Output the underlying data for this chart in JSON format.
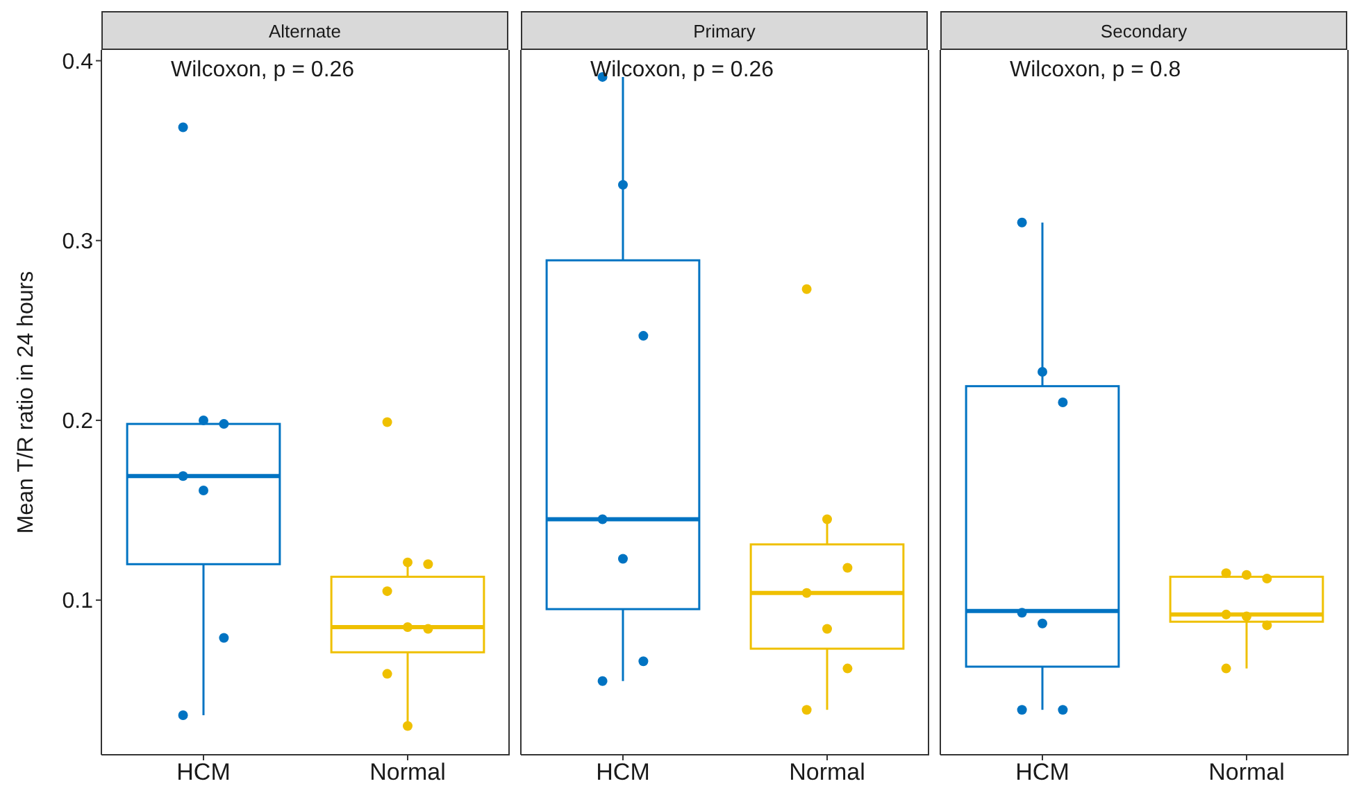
{
  "chart_data": [
    {
      "type": "box",
      "title": "Alternate",
      "ylabel": "Mean T/R ratio in 24 hours",
      "annotations": [
        "Wilcoxon, p = 0.26"
      ],
      "categories": [
        "HCM",
        "Normal"
      ],
      "colors": [
        "#0073c2",
        "#efc000"
      ],
      "ylim": [
        0.014,
        0.406
      ],
      "yticks": [
        0.1,
        0.2,
        0.3,
        0.4
      ],
      "grid": false,
      "legend": false,
      "boxes": [
        {
          "low": 0.036,
          "q1": 0.12,
          "median": 0.169,
          "q3": 0.198,
          "high": 0.2
        },
        {
          "low": 0.03,
          "q1": 0.071,
          "median": 0.085,
          "q3": 0.113,
          "high": 0.121
        }
      ],
      "series": [
        {
          "type": "scatter",
          "color": "#0073c2",
          "x": [
            "HCM",
            "HCM",
            "HCM",
            "HCM",
            "HCM",
            "HCM",
            "HCM"
          ],
          "values": [
            0.363,
            0.2,
            0.198,
            0.169,
            0.161,
            0.079,
            0.036
          ]
        },
        {
          "type": "scatter",
          "color": "#efc000",
          "x": [
            "Normal",
            "Normal",
            "Normal",
            "Normal",
            "Normal",
            "Normal",
            "Normal",
            "Normal"
          ],
          "values": [
            0.199,
            0.121,
            0.12,
            0.105,
            0.085,
            0.084,
            0.059,
            0.03
          ]
        }
      ]
    },
    {
      "type": "box",
      "title": "Primary",
      "annotations": [
        "Wilcoxon, p = 0.26"
      ],
      "categories": [
        "HCM",
        "Normal"
      ],
      "colors": [
        "#0073c2",
        "#efc000"
      ],
      "ylim": [
        0.014,
        0.406
      ],
      "yticks": [
        0.1,
        0.2,
        0.3,
        0.4
      ],
      "tick_labels": "x",
      "grid": false,
      "legend": false,
      "boxes": [
        {
          "low": 0.055,
          "q1": 0.095,
          "median": 0.145,
          "q3": 0.289,
          "high": 0.391
        },
        {
          "low": 0.039,
          "q1": 0.073,
          "median": 0.104,
          "q3": 0.131,
          "high": 0.145
        }
      ],
      "series": [
        {
          "type": "scatter",
          "color": "#0073c2",
          "x": [
            "HCM",
            "HCM",
            "HCM",
            "HCM",
            "HCM",
            "HCM",
            "HCM"
          ],
          "values": [
            0.391,
            0.331,
            0.247,
            0.145,
            0.123,
            0.066,
            0.055
          ]
        },
        {
          "type": "scatter",
          "color": "#efc000",
          "x": [
            "Normal",
            "Normal",
            "Normal",
            "Normal",
            "Normal",
            "Normal",
            "Normal"
          ],
          "values": [
            0.273,
            0.145,
            0.118,
            0.104,
            0.084,
            0.062,
            0.039
          ]
        }
      ]
    },
    {
      "type": "box",
      "title": "Secondary",
      "annotations": [
        "Wilcoxon, p = 0.8"
      ],
      "categories": [
        "HCM",
        "Normal"
      ],
      "colors": [
        "#0073c2",
        "#efc000"
      ],
      "ylim": [
        0.014,
        0.406
      ],
      "yticks": [
        0.1,
        0.2,
        0.3,
        0.4
      ],
      "tick_labels": "x",
      "grid": false,
      "legend": false,
      "boxes": [
        {
          "low": 0.039,
          "q1": 0.063,
          "median": 0.094,
          "q3": 0.219,
          "high": 0.31
        },
        {
          "low": 0.062,
          "q1": 0.088,
          "median": 0.092,
          "q3": 0.113,
          "high": 0.115
        }
      ],
      "series": [
        {
          "type": "scatter",
          "color": "#0073c2",
          "x": [
            "HCM",
            "HCM",
            "HCM",
            "HCM",
            "HCM",
            "HCM",
            "HCM"
          ],
          "values": [
            0.31,
            0.227,
            0.21,
            0.093,
            0.087,
            0.039,
            0.039
          ]
        },
        {
          "type": "scatter",
          "color": "#efc000",
          "x": [
            "Normal",
            "Normal",
            "Normal",
            "Normal",
            "Normal",
            "Normal",
            "Normal"
          ],
          "values": [
            0.115,
            0.114,
            0.112,
            0.092,
            0.091,
            0.086,
            0.062
          ]
        }
      ]
    }
  ]
}
